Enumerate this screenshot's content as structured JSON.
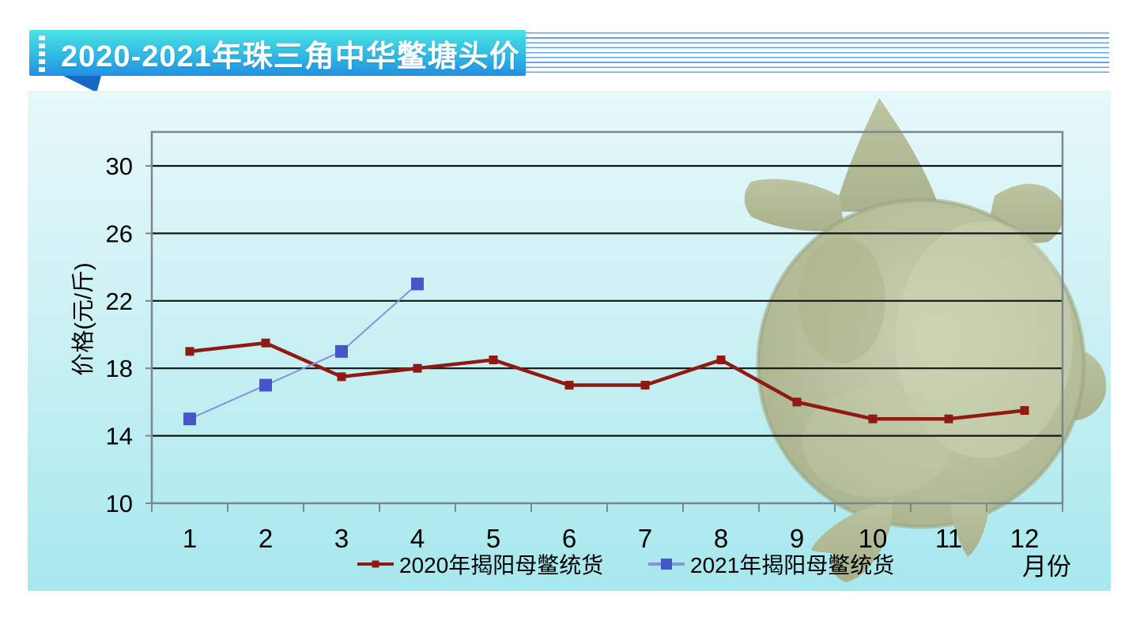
{
  "banner": {
    "title": "2020-2021年珠三角中华鳖塘头价"
  },
  "chart_data": {
    "type": "line",
    "categories": [
      "1",
      "2",
      "3",
      "4",
      "5",
      "6",
      "7",
      "8",
      "9",
      "10",
      "11",
      "12"
    ],
    "xlabel": "月份",
    "ylabel": "价格(元/斤)",
    "ylim": [
      10,
      30
    ],
    "yticks": [
      10,
      14,
      18,
      22,
      26,
      30
    ],
    "grid": "horizontal",
    "legend_position": "bottom",
    "series": [
      {
        "name": "2020年揭阳母鳖统货",
        "color": "#8e1a12",
        "line_color": "#8e1a12",
        "line_width": 4.5,
        "marker": "square",
        "marker_size": 11,
        "values": [
          19,
          19.5,
          17.5,
          18,
          18.5,
          17,
          17,
          18.5,
          16,
          15,
          15,
          15.5
        ]
      },
      {
        "name": "2021年揭阳母鳖统货",
        "color": "#4656c6",
        "line_color": "#8394da",
        "line_width": 2,
        "marker": "square",
        "marker_size": 16,
        "values": [
          15,
          17,
          19,
          23
        ]
      }
    ]
  },
  "colors": {
    "banner_top": "#4be3e6",
    "banner_bottom": "#2190e2",
    "banner_tail": "#1568c8",
    "pinstripe": "#66a3e4",
    "panel_top": "#e6f8fa",
    "panel_bottom": "#a6e8ee",
    "gridline": "#141414",
    "axis_frame": "#7b878e",
    "turtle_body": "#b5bc96"
  }
}
